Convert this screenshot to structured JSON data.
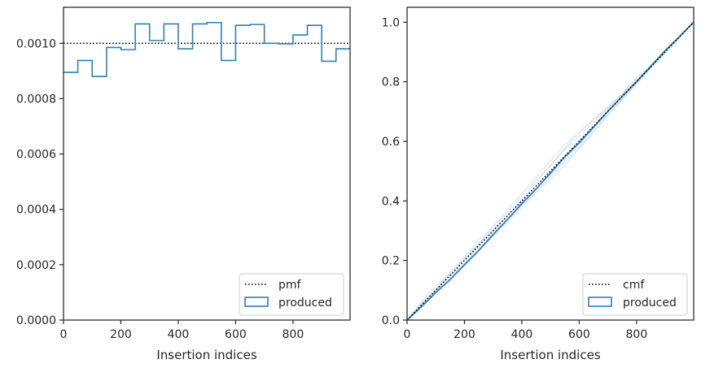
{
  "chart_data": [
    {
      "type": "step",
      "xlabel": "Insertion indices",
      "ylabel": "",
      "xlim": [
        0,
        999
      ],
      "ylim": [
        0,
        0.00113
      ],
      "xticks": [
        0,
        200,
        400,
        600,
        800
      ],
      "xtick_labels": [
        "0",
        "200",
        "400",
        "600",
        "800"
      ],
      "yticks": [
        0,
        0.0002,
        0.0004,
        0.0006,
        0.0008,
        0.001
      ],
      "ytick_labels": [
        "0.0000",
        "0.0002",
        "0.0004",
        "0.0006",
        "0.0008",
        "0.0010"
      ],
      "reference_line": {
        "name": "pmf",
        "value": 0.001,
        "style": "dotted",
        "color": "#000000"
      },
      "series": [
        {
          "name": "produced",
          "color": "#2f7fb6",
          "bin_edges": [
            0,
            50,
            100,
            150,
            200,
            250,
            300,
            350,
            400,
            450,
            500,
            550,
            600,
            650,
            700,
            750,
            800,
            850,
            900,
            950,
            999
          ],
          "values": [
            0.000895,
            0.000938,
            0.00088,
            0.000985,
            0.000977,
            0.00107,
            0.00101,
            0.00107,
            0.00098,
            0.00107,
            0.001075,
            0.000938,
            0.001065,
            0.001068,
            0.001,
            0.000998,
            0.00103,
            0.001065,
            0.000935,
            0.00098
          ]
        }
      ],
      "legend": {
        "position": "lower-right",
        "entries": [
          "pmf",
          "produced"
        ]
      },
      "grid": false
    },
    {
      "type": "line",
      "xlabel": "Insertion indices",
      "ylabel": "",
      "xlim": [
        0,
        999
      ],
      "ylim": [
        0,
        1.05
      ],
      "xticks": [
        0,
        200,
        400,
        600,
        800
      ],
      "xtick_labels": [
        "0",
        "200",
        "400",
        "600",
        "800"
      ],
      "yticks": [
        0,
        0.2,
        0.4,
        0.6,
        0.8,
        1.0
      ],
      "ytick_labels": [
        "0.0",
        "0.2",
        "0.4",
        "0.6",
        "0.8",
        "1.0"
      ],
      "reference_line": {
        "name": "cmf",
        "x": [
          0,
          999
        ],
        "y": [
          0,
          1
        ],
        "style": "dotted",
        "color": "#000000"
      },
      "series": [
        {
          "name": "produced",
          "color": "#2f7fb6",
          "x": [
            0,
            50,
            100,
            150,
            200,
            250,
            300,
            350,
            400,
            450,
            500,
            550,
            600,
            650,
            700,
            750,
            800,
            850,
            900,
            950,
            999
          ],
          "y": [
            0,
            0.045,
            0.092,
            0.136,
            0.185,
            0.234,
            0.287,
            0.338,
            0.391,
            0.44,
            0.494,
            0.548,
            0.595,
            0.648,
            0.701,
            0.751,
            0.8,
            0.852,
            0.905,
            0.952,
            1.0
          ]
        }
      ],
      "background_curves": {
        "color": "#c6dbef",
        "count": 6,
        "deviations": [
          [
            0,
            0.004,
            -0.003,
            0.008,
            0.012,
            0.006,
            0.015,
            0.01,
            0.018,
            0.02,
            0.016,
            0.022,
            0.018,
            0.012,
            0.01,
            0.006,
            0.004,
            0.002,
            0.003,
            0.001,
            0
          ],
          [
            0,
            -0.006,
            -0.01,
            -0.012,
            -0.009,
            -0.015,
            -0.02,
            -0.018,
            -0.014,
            -0.022,
            -0.019,
            -0.012,
            -0.016,
            -0.01,
            -0.012,
            -0.006,
            -0.008,
            -0.004,
            -0.002,
            -0.001,
            0
          ],
          [
            0,
            0.01,
            0.014,
            0.006,
            0.01,
            0.018,
            0.012,
            0.02,
            0.026,
            0.03,
            0.034,
            0.038,
            0.028,
            0.02,
            0.016,
            0.01,
            0.012,
            0.006,
            0.004,
            0.002,
            0
          ],
          [
            0,
            -0.002,
            0.004,
            -0.004,
            -0.01,
            -0.006,
            -0.012,
            -0.018,
            -0.024,
            -0.02,
            -0.028,
            -0.03,
            -0.022,
            -0.018,
            -0.01,
            -0.014,
            -0.006,
            -0.004,
            -0.006,
            -0.002,
            0
          ],
          [
            0,
            0.006,
            0.002,
            0.01,
            0.004,
            0.008,
            0.004,
            -0.002,
            0.006,
            0.012,
            0.02,
            0.026,
            0.03,
            0.024,
            0.014,
            0.008,
            0.01,
            0.004,
            0.002,
            0.001,
            0
          ],
          [
            0,
            -0.008,
            -0.004,
            -0.002,
            0.004,
            0.002,
            -0.006,
            0.002,
            -0.004,
            -0.008,
            -0.012,
            -0.018,
            -0.026,
            -0.02,
            -0.014,
            -0.01,
            -0.004,
            -0.006,
            -0.003,
            -0.001,
            0
          ]
        ]
      },
      "legend": {
        "position": "lower-right",
        "entries": [
          "cmf",
          "produced"
        ]
      },
      "grid": false
    }
  ]
}
